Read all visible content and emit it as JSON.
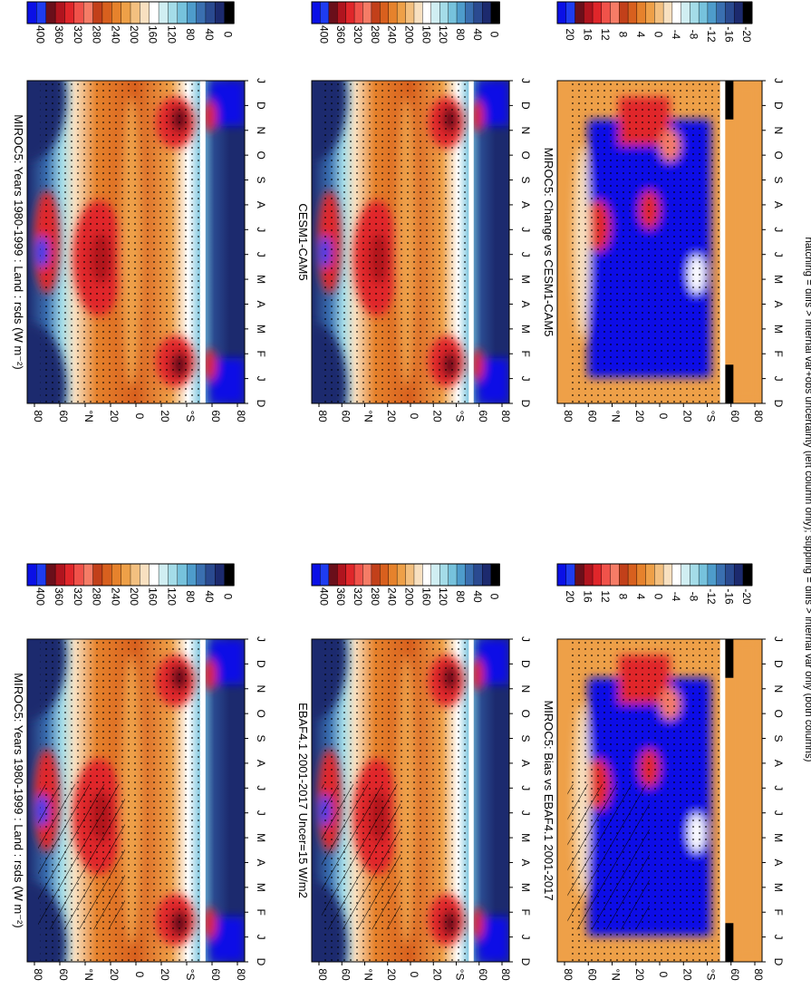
{
  "footnote": "hatching = diffs > internal var+obs uncertainty (left column only); stippling = diffs > internal var only (both columns)",
  "colorbars": {
    "absolute": {
      "labels": [
        "400",
        "360",
        "320",
        "280",
        "240",
        "200",
        "160",
        "120",
        "80",
        "40",
        "0"
      ],
      "colors": [
        "#0a10e6",
        "#1e3cf0",
        "#6a0f1a",
        "#b0141e",
        "#e0262a",
        "#f0524a",
        "#f57c66",
        "#c2401a",
        "#d8601e",
        "#e6822c",
        "#eea048",
        "#f3c080",
        "#f8e0c0",
        "#ffffff",
        "#d0eef2",
        "#a4dce8",
        "#76c2dc",
        "#4e9ccb",
        "#3a6fb0",
        "#2a4a90",
        "#1c2a6e",
        "#000000"
      ]
    },
    "difference": {
      "labels": [
        "20",
        "16",
        "12",
        "8",
        "4",
        "0",
        "-4",
        "-8",
        "-12",
        "-16",
        "-20"
      ],
      "colors": [
        "#0a10e6",
        "#1e3cf0",
        "#6a0f1a",
        "#b0141e",
        "#e0262a",
        "#f0524a",
        "#f57c66",
        "#c2401a",
        "#d8601e",
        "#e6822c",
        "#eea048",
        "#f3c080",
        "#f8e0c0",
        "#ffffff",
        "#d0eef2",
        "#a4dce8",
        "#76c2dc",
        "#4e9ccb",
        "#3a6fb0",
        "#2a4a90",
        "#1c2a6e",
        "#000000"
      ]
    }
  },
  "chart_data": [
    {
      "type": "heatmap",
      "title": "MIROC5: Years 1980-1999 : Land : rsds (W m⁻²)",
      "months": [
        "D",
        "J",
        "F",
        "M",
        "A",
        "M",
        "J",
        "J",
        "A",
        "S",
        "O",
        "N",
        "D",
        "J"
      ],
      "lat_ticks": [
        "80",
        "60",
        "°N",
        "20",
        "0",
        "20",
        "°S",
        "60",
        "80"
      ],
      "colorbar": "absolute",
      "range": [
        0,
        400
      ],
      "stippling": true,
      "hatching": true
    },
    {
      "type": "heatmap",
      "title": "MIROC5: Years 1980-1999 : Land : rsds (W m⁻²)",
      "months": [
        "D",
        "J",
        "F",
        "M",
        "A",
        "M",
        "J",
        "J",
        "A",
        "S",
        "O",
        "N",
        "D",
        "J"
      ],
      "lat_ticks": [
        "80",
        "60",
        "°N",
        "20",
        "0",
        "20",
        "°S",
        "60",
        "80"
      ],
      "colorbar": "absolute",
      "range": [
        0,
        400
      ],
      "stippling": true,
      "hatching": false
    },
    {
      "type": "heatmap",
      "title": "EBAF4.1 2001-2017 Uncer=15 W/m2",
      "months": [
        "D",
        "J",
        "F",
        "M",
        "A",
        "M",
        "J",
        "J",
        "A",
        "S",
        "O",
        "N",
        "D",
        "J"
      ],
      "lat_ticks": [
        "80",
        "60",
        "°N",
        "20",
        "0",
        "20",
        "°S",
        "60",
        "80"
      ],
      "colorbar": "absolute",
      "range": [
        0,
        400
      ],
      "stippling": true,
      "hatching": true
    },
    {
      "type": "heatmap",
      "title": "CESM1-CAM5",
      "months": [
        "D",
        "J",
        "F",
        "M",
        "A",
        "M",
        "J",
        "J",
        "A",
        "S",
        "O",
        "N",
        "D",
        "J"
      ],
      "lat_ticks": [
        "80",
        "60",
        "°N",
        "20",
        "0",
        "20",
        "°S",
        "60",
        "80"
      ],
      "colorbar": "absolute",
      "range": [
        0,
        400
      ],
      "stippling": true,
      "hatching": false
    },
    {
      "type": "heatmap",
      "title": "MIROC5: Bias vs EBAF4.1 2001-2017",
      "months": [
        "D",
        "J",
        "F",
        "M",
        "A",
        "M",
        "J",
        "J",
        "A",
        "S",
        "O",
        "N",
        "D",
        "J"
      ],
      "lat_ticks": [
        "80",
        "60",
        "°N",
        "20",
        "0",
        "20",
        "°S",
        "60",
        "80"
      ],
      "colorbar": "difference",
      "range": [
        -20,
        20
      ],
      "stippling": true,
      "hatching": true
    },
    {
      "type": "heatmap",
      "title": "MIROC5: Change vs CESM1-CAM5",
      "months": [
        "D",
        "J",
        "F",
        "M",
        "A",
        "M",
        "J",
        "J",
        "A",
        "S",
        "O",
        "N",
        "D",
        "J"
      ],
      "lat_ticks": [
        "80",
        "60",
        "°N",
        "20",
        "0",
        "20",
        "°S",
        "60",
        "80"
      ],
      "colorbar": "difference",
      "range": [
        -20,
        20
      ],
      "stippling": true,
      "hatching": false
    }
  ]
}
